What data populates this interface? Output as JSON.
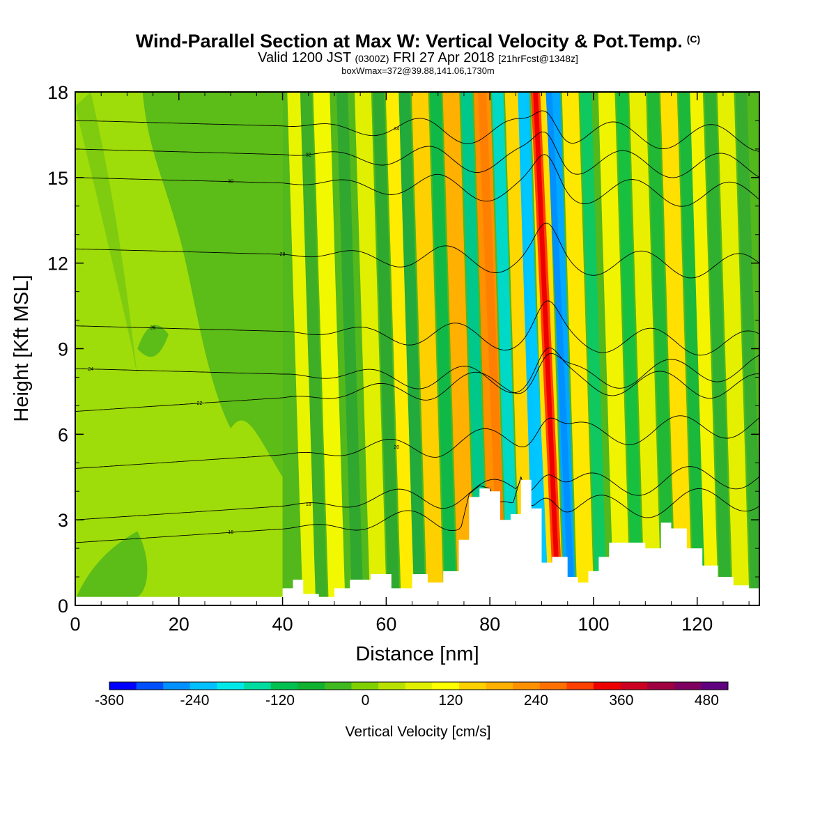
{
  "chart_data": {
    "type": "heatmap",
    "title": "Wind-Parallel Section at Max W: Vertical Velocity & Pot.Temp.",
    "title_mark": "(C)",
    "subtitle_main": "Valid 1200 JST",
    "subtitle_utc": "(0300Z)",
    "subtitle_date": "FRI 27 Apr 2018",
    "subtitle_fcst": "[21hrFcst@1348z]",
    "box_info": "boxWmax=372@39.88,141.06,1730m",
    "xlabel": "Distance [nm]",
    "ylabel": "Height [Kft MSL]",
    "xlim": [
      0,
      132
    ],
    "ylim": [
      0,
      18
    ],
    "x_ticks": [
      "0",
      "20",
      "40",
      "60",
      "80",
      "100",
      "120"
    ],
    "y_ticks": [
      "0",
      "3",
      "6",
      "9",
      "12",
      "15",
      "18"
    ],
    "colorbar": {
      "label": "Vertical Velocity [cm/s]",
      "range": [
        -360,
        510
      ],
      "step": 30,
      "tick_labels": [
        "-360",
        "-240",
        "-120",
        "0",
        "120",
        "240",
        "360",
        "480"
      ],
      "colors": [
        "#0000ff",
        "#0050ff",
        "#0090ff",
        "#00c0ff",
        "#00e8e8",
        "#00dca0",
        "#00c050",
        "#10b030",
        "#40b820",
        "#80d000",
        "#b8e000",
        "#e0f000",
        "#ffff00",
        "#ffd000",
        "#ffb000",
        "#ff9000",
        "#ff7000",
        "#ff4000",
        "#ee0000",
        "#cc0020",
        "#a00040",
        "#800060",
        "#600080"
      ]
    },
    "updraft_bands_x_nm": [
      44,
      49,
      57,
      63,
      68,
      74,
      80,
      86,
      91,
      97,
      104,
      110,
      116,
      121,
      127
    ],
    "downdraft_bands_x_nm": [
      46,
      53,
      60,
      65,
      71,
      77,
      83,
      88,
      94,
      100,
      107,
      113,
      119,
      124,
      130
    ],
    "max_updraft": {
      "x_nm": 91,
      "value_cms": 372
    },
    "terrain_kft": {
      "x": [
        0,
        40,
        42,
        44,
        47,
        50,
        53,
        57,
        61,
        65,
        68,
        71,
        74,
        76,
        78,
        80,
        82,
        84,
        86,
        88,
        90,
        92,
        95,
        97,
        99,
        101,
        103,
        105,
        107,
        110,
        113,
        115,
        118,
        121,
        124,
        127,
        130,
        132
      ],
      "y": [
        0.3,
        0.6,
        0.9,
        0.4,
        0.3,
        0.6,
        0.9,
        1.1,
        0.6,
        1.1,
        0.8,
        1.2,
        2.3,
        3.8,
        4.1,
        4.0,
        3.0,
        3.2,
        4.4,
        3.4,
        1.5,
        1.7,
        1.0,
        0.8,
        1.2,
        1.7,
        2.2,
        2.2,
        2.2,
        2.0,
        2.9,
        2.7,
        2.0,
        1.4,
        1.0,
        0.7,
        0.6,
        0.6
      ]
    },
    "isentropes": [
      {
        "label": "16",
        "base_kft": 2.2
      },
      {
        "label": "18",
        "base_kft": 3.0
      },
      {
        "label": "20",
        "base_kft": 4.8
      },
      {
        "label": "22",
        "base_kft": 6.8
      },
      {
        "label": "24",
        "base_kft": 8.3
      },
      {
        "label": "26",
        "base_kft": 9.8
      },
      {
        "label": "28",
        "base_kft": 12.5
      },
      {
        "label": "30",
        "base_kft": 15.0
      },
      {
        "label": "32",
        "base_kft": 16.0
      },
      {
        "label": "34",
        "base_kft": 17.0
      }
    ]
  }
}
